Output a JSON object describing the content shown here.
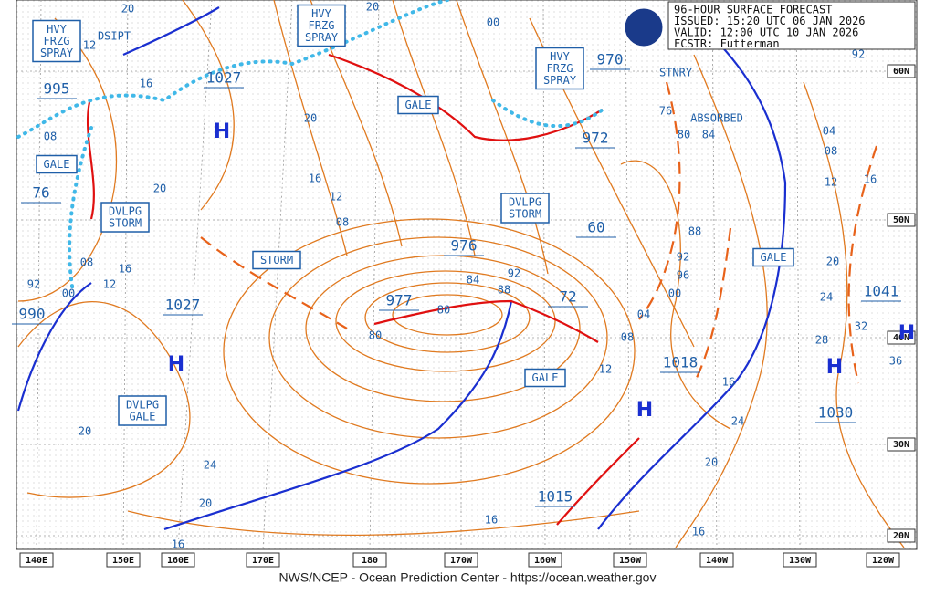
{
  "header": {
    "lines": [
      "96-HOUR SURFACE FORECAST",
      "ISSUED: 15:20 UTC 06 JAN 2026",
      "VALID:  12:00 UTC 10 JAN 2026",
      "FCSTR:  Futterman"
    ]
  },
  "footer": "NWS/NCEP - Ocean Prediction Center - https://ocean.weather.gov",
  "longitudes": [
    "140E",
    "150E",
    "160E",
    "170E",
    "180",
    "170W",
    "160W",
    "150W",
    "140W",
    "130W",
    "120W"
  ],
  "latitudes": [
    "60N",
    "50N",
    "40N",
    "30N",
    "20N"
  ],
  "warnings": [
    {
      "lines": [
        "HVY",
        "FRZG",
        "SPRAY"
      ]
    },
    {
      "lines": [
        "HVY",
        "FRZG",
        "SPRAY"
      ]
    },
    {
      "lines": [
        "HVY",
        "FRZG",
        "SPRAY"
      ]
    },
    {
      "lines": [
        "GALE"
      ]
    },
    {
      "lines": [
        "GALE"
      ]
    },
    {
      "lines": [
        "DVLPG",
        "STORM"
      ]
    },
    {
      "lines": [
        "STORM"
      ]
    },
    {
      "lines": [
        "DVLPG",
        "STORM"
      ]
    },
    {
      "lines": [
        "GALE"
      ]
    },
    {
      "lines": [
        "GALE"
      ]
    },
    {
      "lines": [
        "DVLPG",
        "GALE"
      ]
    }
  ],
  "notes": [
    "DSIPT",
    "STNRY",
    "ABSORBED"
  ],
  "centers": [
    "995",
    "1027",
    "76",
    "990",
    "1027",
    "977",
    "976",
    "60",
    "72",
    "970",
    "972",
    "1018",
    "1030",
    "1041",
    "1015"
  ],
  "highs": [
    "H",
    "H",
    "H",
    "H",
    "H"
  ],
  "isobar_labels": [
    "20",
    "12",
    "16",
    "08",
    "20",
    "08",
    "16",
    "12",
    "00",
    "92",
    "20",
    "24",
    "20",
    "16",
    "20",
    "16",
    "12",
    "08",
    "84",
    "92",
    "88",
    "80",
    "80",
    "00",
    "76",
    "80",
    "84",
    "88",
    "92",
    "96",
    "00",
    "04",
    "08",
    "12",
    "16",
    "24",
    "20",
    "16",
    "16",
    "04",
    "08",
    "12",
    "16",
    "20",
    "24",
    "32",
    "28",
    "36",
    "92",
    "20"
  ]
}
